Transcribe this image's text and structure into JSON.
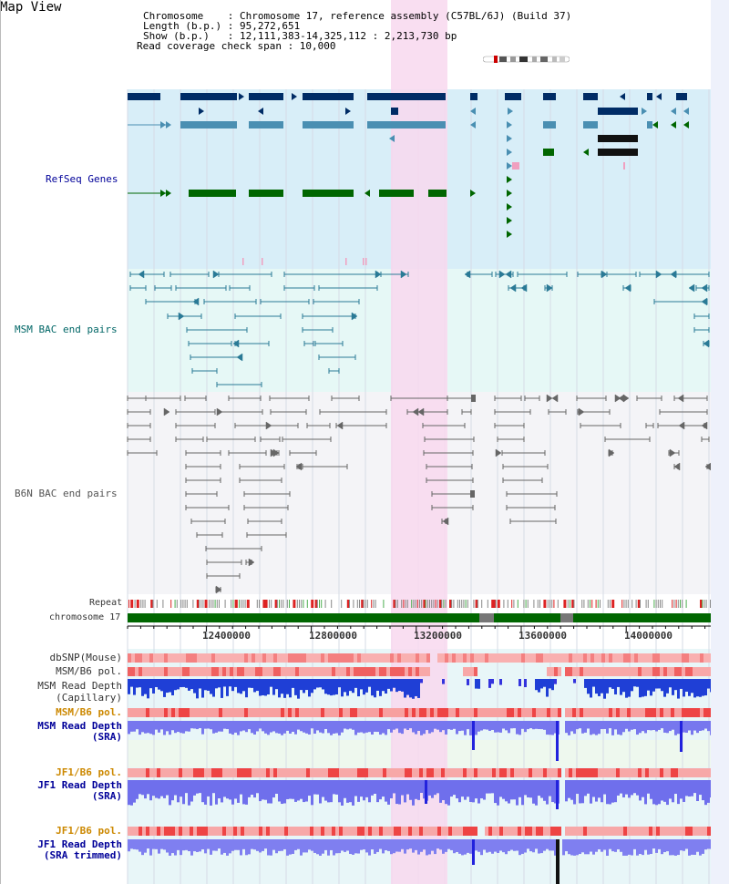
{
  "header": {
    "title": "Map View",
    "info_lines": [
      "Chromosome    : Chromosome 17, reference assembly (C57BL/6J) (Build 37)",
      "Length (b.p.) : 95,272,651",
      "Show (b.p.)   : 12,111,383-14,325,112 : 2,213,730 bp",
      "Read coverage check span : 10,000"
    ]
  },
  "tracks": {
    "refseq": "RefSeq Genes",
    "msm_bac": "MSM BAC end pairs",
    "b6n_bac": "B6N BAC end pairs",
    "repeat": "Repeat",
    "chromosome": "chromosome 17"
  },
  "axis": {
    "ticks": [
      "12400000",
      "12800000",
      "13200000",
      "13600000",
      "14000000"
    ]
  },
  "lower_tracks": [
    {
      "label": "dbSNP(Mouse)",
      "color": "#333333"
    },
    {
      "label": "MSM/B6 pol.",
      "color": "#333333"
    },
    {
      "label": "MSM Read Depth\n(Capillary)",
      "color": "#333333"
    },
    {
      "label": "MSM/B6 pol.",
      "color": "#cc8800"
    },
    {
      "label": "MSM Read Depth\n(SRA)",
      "color": "#000099"
    },
    {
      "label": "JF1/B6 pol.",
      "color": "#cc8800"
    },
    {
      "label": "JF1 Read Depth\n(SRA)",
      "color": "#000099"
    },
    {
      "label": "JF1/B6 pol.",
      "color": "#cc8800"
    },
    {
      "label": "JF1 Read Depth\n(SRA trimmed)",
      "color": "#000099"
    }
  ],
  "colors": {
    "refseq_bg": "#d8eef8",
    "msm_bg": "#e6f8f6",
    "b6n_bg": "#f4f4f7",
    "highlight": "#f8d8ee",
    "dark_navy": "#002c66",
    "mid_blue": "#4a8fb2",
    "green": "#006600",
    "chrom_green": "#006600"
  }
}
